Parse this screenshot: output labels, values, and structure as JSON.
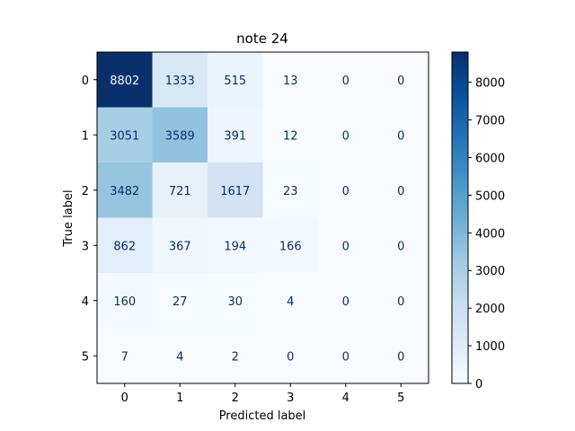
{
  "chart_data": {
    "type": "heatmap",
    "title": "note 24",
    "xlabel": "Predicted label",
    "ylabel": "True label",
    "x_categories": [
      "0",
      "1",
      "2",
      "3",
      "4",
      "5"
    ],
    "y_categories": [
      "0",
      "1",
      "2",
      "3",
      "4",
      "5"
    ],
    "values": [
      [
        8802,
        1333,
        515,
        13,
        0,
        0
      ],
      [
        3051,
        3589,
        391,
        12,
        0,
        0
      ],
      [
        3482,
        721,
        1617,
        23,
        0,
        0
      ],
      [
        862,
        367,
        194,
        166,
        0,
        0
      ],
      [
        160,
        27,
        30,
        4,
        0,
        0
      ],
      [
        7,
        4,
        2,
        0,
        0,
        0
      ]
    ],
    "colormap": "Blues",
    "colorbar": {
      "range": [
        0,
        8802
      ],
      "ticks": [
        "0",
        "1000",
        "2000",
        "3000",
        "4000",
        "5000",
        "6000",
        "7000",
        "8000"
      ]
    },
    "grid": false
  }
}
